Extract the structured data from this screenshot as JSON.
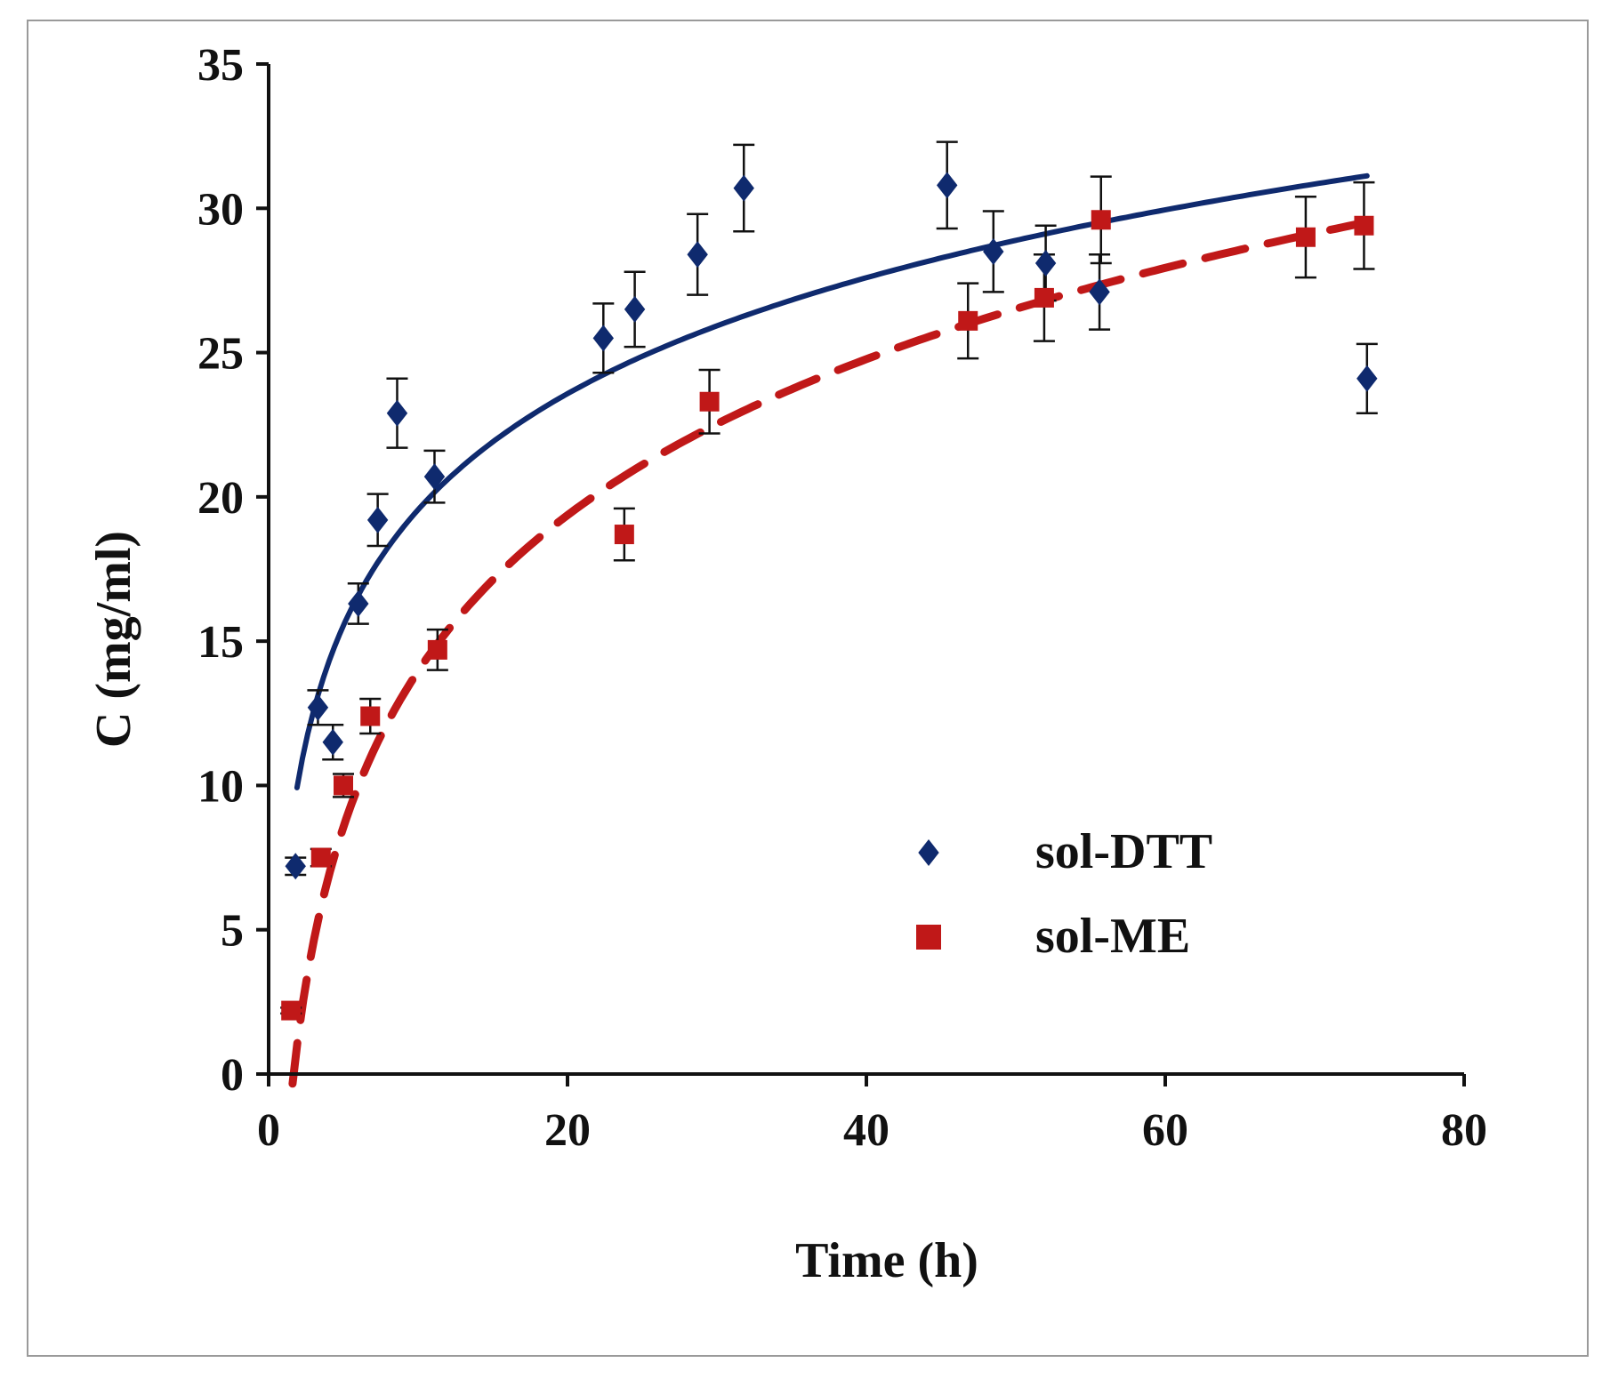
{
  "chart_data": {
    "type": "scatter",
    "title": "",
    "xlabel": "Time (h)",
    "ylabel": "C (mg/ml)",
    "xlim": [
      0,
      80
    ],
    "ylim": [
      0,
      35
    ],
    "xticks": [
      0,
      20,
      40,
      60,
      80
    ],
    "yticks": [
      0,
      5,
      10,
      15,
      20,
      25,
      30,
      35
    ],
    "grid": false,
    "legend_position": "center-right",
    "series": [
      {
        "name": "sol-DTT",
        "color": "#0f2a6e",
        "marker": "diamond",
        "line_style": "solid",
        "points": [
          {
            "x": 1.8,
            "y": 7.2,
            "err": 0.3
          },
          {
            "x": 3.3,
            "y": 12.7,
            "err": 0.6
          },
          {
            "x": 4.3,
            "y": 11.5,
            "err": 0.6
          },
          {
            "x": 6.0,
            "y": 16.3,
            "err": 0.7
          },
          {
            "x": 7.3,
            "y": 19.2,
            "err": 0.9
          },
          {
            "x": 8.6,
            "y": 22.9,
            "err": 1.2
          },
          {
            "x": 11.1,
            "y": 20.7,
            "err": 0.9
          },
          {
            "x": 22.4,
            "y": 25.5,
            "err": 1.2
          },
          {
            "x": 24.5,
            "y": 26.5,
            "err": 1.3
          },
          {
            "x": 28.7,
            "y": 28.4,
            "err": 1.4
          },
          {
            "x": 31.8,
            "y": 30.7,
            "err": 1.5
          },
          {
            "x": 45.4,
            "y": 30.8,
            "err": 1.5
          },
          {
            "x": 48.5,
            "y": 28.5,
            "err": 1.4
          },
          {
            "x": 52.0,
            "y": 28.1,
            "err": 1.3
          },
          {
            "x": 55.6,
            "y": 27.1,
            "err": 1.3
          },
          {
            "x": 73.5,
            "y": 24.1,
            "err": 1.2
          }
        ],
        "fit": {
          "model": "logarithmic",
          "a": 6.2,
          "b": 5.8,
          "x_range": [
            1.9,
            73.5
          ]
        }
      },
      {
        "name": "sol-ME",
        "color": "#c01818",
        "marker": "square",
        "line_style": "dashed",
        "points": [
          {
            "x": 1.5,
            "y": 2.2,
            "err": 0.1
          },
          {
            "x": 3.5,
            "y": 7.5,
            "err": 0.3
          },
          {
            "x": 5.0,
            "y": 10.0,
            "err": 0.4
          },
          {
            "x": 6.8,
            "y": 12.4,
            "err": 0.6
          },
          {
            "x": 11.3,
            "y": 14.7,
            "err": 0.7
          },
          {
            "x": 23.8,
            "y": 18.7,
            "err": 0.9
          },
          {
            "x": 29.5,
            "y": 23.3,
            "err": 1.1
          },
          {
            "x": 46.8,
            "y": 26.1,
            "err": 1.3
          },
          {
            "x": 51.9,
            "y": 26.9,
            "err": 1.5
          },
          {
            "x": 55.7,
            "y": 29.6,
            "err": 1.5
          },
          {
            "x": 69.4,
            "y": 29.0,
            "err": 1.4
          },
          {
            "x": 73.3,
            "y": 29.4,
            "err": 1.5
          }
        ],
        "fit": {
          "model": "logarithmic",
          "a": -4.0,
          "b": 7.8,
          "x_range": [
            1.6,
            73.3
          ]
        }
      }
    ]
  }
}
